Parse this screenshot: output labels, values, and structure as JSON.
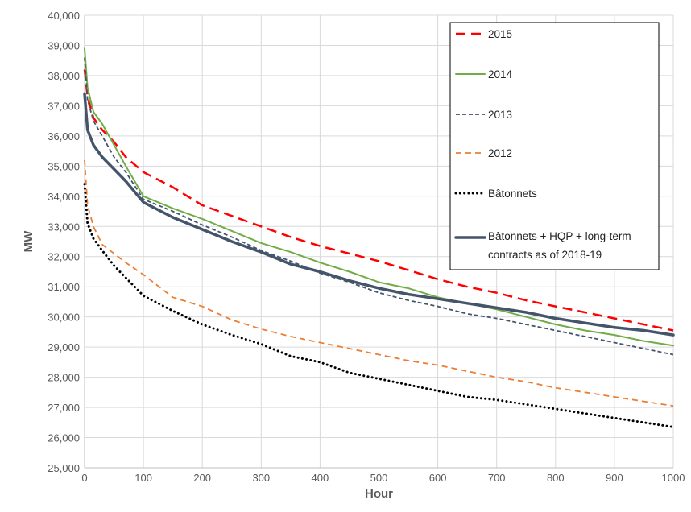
{
  "chart_data": {
    "type": "line",
    "title": "",
    "xlabel": "Hour",
    "ylabel": "MW",
    "xlim": [
      0,
      1000
    ],
    "ylim": [
      25000,
      40000
    ],
    "x_ticks": [
      0,
      100,
      200,
      300,
      400,
      500,
      600,
      700,
      800,
      900,
      1000
    ],
    "y_ticks": [
      25000,
      26000,
      27000,
      28000,
      29000,
      30000,
      31000,
      32000,
      33000,
      34000,
      35000,
      36000,
      37000,
      38000,
      39000,
      40000
    ],
    "x_tick_labels": [
      "0",
      "100",
      "200",
      "300",
      "400",
      "500",
      "600",
      "700",
      "800",
      "900",
      "1000"
    ],
    "y_tick_labels": [
      "25,000",
      "26,000",
      "27,000",
      "28,000",
      "29,000",
      "30,000",
      "31,000",
      "32,000",
      "33,000",
      "34,000",
      "35,000",
      "36,000",
      "37,000",
      "38,000",
      "39,000",
      "40,000"
    ],
    "grid": true,
    "legend_position": "top-right",
    "series": [
      {
        "name": "2015",
        "color": "#ff0000",
        "style": "long-dash",
        "points": [
          [
            0,
            38200
          ],
          [
            5,
            37300
          ],
          [
            15,
            36600
          ],
          [
            30,
            36200
          ],
          [
            50,
            35800
          ],
          [
            70,
            35300
          ],
          [
            100,
            34800
          ],
          [
            150,
            34300
          ],
          [
            200,
            33700
          ],
          [
            250,
            33350
          ],
          [
            300,
            33000
          ],
          [
            350,
            32650
          ],
          [
            400,
            32350
          ],
          [
            450,
            32100
          ],
          [
            500,
            31850
          ],
          [
            550,
            31550
          ],
          [
            600,
            31250
          ],
          [
            650,
            31000
          ],
          [
            700,
            30800
          ],
          [
            750,
            30550
          ],
          [
            800,
            30350
          ],
          [
            850,
            30150
          ],
          [
            900,
            29950
          ],
          [
            950,
            29750
          ],
          [
            1000,
            29550
          ]
        ]
      },
      {
        "name": "2014",
        "color": "#70ad47",
        "style": "solid",
        "points": [
          [
            0,
            38900
          ],
          [
            5,
            37600
          ],
          [
            15,
            36800
          ],
          [
            30,
            36400
          ],
          [
            50,
            35700
          ],
          [
            70,
            35000
          ],
          [
            100,
            34000
          ],
          [
            150,
            33600
          ],
          [
            200,
            33250
          ],
          [
            250,
            32850
          ],
          [
            300,
            32450
          ],
          [
            350,
            32150
          ],
          [
            400,
            31800
          ],
          [
            450,
            31500
          ],
          [
            500,
            31150
          ],
          [
            550,
            30950
          ],
          [
            600,
            30650
          ],
          [
            650,
            30450
          ],
          [
            700,
            30250
          ],
          [
            750,
            30000
          ],
          [
            800,
            29750
          ],
          [
            850,
            29550
          ],
          [
            900,
            29400
          ],
          [
            950,
            29200
          ],
          [
            1000,
            29050
          ]
        ]
      },
      {
        "name": "2013",
        "color": "#44546a",
        "style": "short-dash",
        "points": [
          [
            0,
            38600
          ],
          [
            5,
            37200
          ],
          [
            15,
            36500
          ],
          [
            30,
            36000
          ],
          [
            50,
            35300
          ],
          [
            70,
            34800
          ],
          [
            100,
            33900
          ],
          [
            150,
            33500
          ],
          [
            200,
            33050
          ],
          [
            250,
            32650
          ],
          [
            300,
            32200
          ],
          [
            350,
            31850
          ],
          [
            400,
            31450
          ],
          [
            450,
            31150
          ],
          [
            500,
            30800
          ],
          [
            550,
            30550
          ],
          [
            600,
            30350
          ],
          [
            650,
            30100
          ],
          [
            700,
            29950
          ],
          [
            750,
            29750
          ],
          [
            800,
            29550
          ],
          [
            850,
            29350
          ],
          [
            900,
            29150
          ],
          [
            950,
            28950
          ],
          [
            1000,
            28750
          ]
        ]
      },
      {
        "name": "2012",
        "color": "#ed7d31",
        "style": "dash",
        "points": [
          [
            0,
            35200
          ],
          [
            5,
            33700
          ],
          [
            15,
            33000
          ],
          [
            30,
            32400
          ],
          [
            50,
            32100
          ],
          [
            70,
            31800
          ],
          [
            100,
            31400
          ],
          [
            150,
            30650
          ],
          [
            200,
            30350
          ],
          [
            250,
            29900
          ],
          [
            300,
            29600
          ],
          [
            350,
            29350
          ],
          [
            400,
            29150
          ],
          [
            450,
            28950
          ],
          [
            500,
            28750
          ],
          [
            550,
            28550
          ],
          [
            600,
            28400
          ],
          [
            650,
            28200
          ],
          [
            700,
            28000
          ],
          [
            750,
            27850
          ],
          [
            800,
            27650
          ],
          [
            850,
            27500
          ],
          [
            900,
            27350
          ],
          [
            950,
            27200
          ],
          [
            1000,
            27050
          ]
        ]
      },
      {
        "name": "Bâtonnets",
        "color": "#000000",
        "style": "dot",
        "points": [
          [
            0,
            34400
          ],
          [
            5,
            33100
          ],
          [
            15,
            32600
          ],
          [
            30,
            32200
          ],
          [
            50,
            31700
          ],
          [
            70,
            31300
          ],
          [
            100,
            30700
          ],
          [
            150,
            30200
          ],
          [
            200,
            29750
          ],
          [
            250,
            29400
          ],
          [
            300,
            29100
          ],
          [
            350,
            28700
          ],
          [
            400,
            28500
          ],
          [
            450,
            28150
          ],
          [
            500,
            27950
          ],
          [
            550,
            27750
          ],
          [
            600,
            27550
          ],
          [
            650,
            27350
          ],
          [
            700,
            27250
          ],
          [
            750,
            27100
          ],
          [
            800,
            26950
          ],
          [
            850,
            26800
          ],
          [
            900,
            26650
          ],
          [
            950,
            26500
          ],
          [
            1000,
            26350
          ]
        ]
      },
      {
        "name": "Bâtonnets + HQP + long-term contracts as of 2018-19",
        "color": "#44546a",
        "style": "thick-solid",
        "points": [
          [
            0,
            37400
          ],
          [
            5,
            36200
          ],
          [
            15,
            35700
          ],
          [
            30,
            35300
          ],
          [
            50,
            34900
          ],
          [
            70,
            34500
          ],
          [
            100,
            33800
          ],
          [
            150,
            33300
          ],
          [
            200,
            32900
          ],
          [
            250,
            32500
          ],
          [
            300,
            32150
          ],
          [
            350,
            31750
          ],
          [
            400,
            31500
          ],
          [
            450,
            31200
          ],
          [
            500,
            30950
          ],
          [
            550,
            30750
          ],
          [
            600,
            30600
          ],
          [
            650,
            30450
          ],
          [
            700,
            30300
          ],
          [
            750,
            30150
          ],
          [
            800,
            29950
          ],
          [
            850,
            29800
          ],
          [
            900,
            29650
          ],
          [
            950,
            29550
          ],
          [
            1000,
            29400
          ]
        ]
      }
    ]
  }
}
